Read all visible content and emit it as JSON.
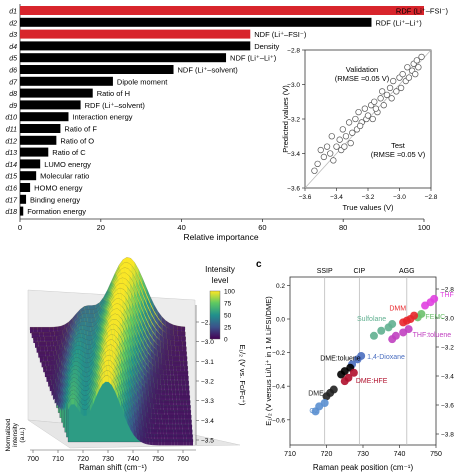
{
  "chart_data": [
    {
      "type": "bar",
      "orientation": "horizontal",
      "xlabel": "Relative importance",
      "xlim": [
        0,
        100
      ],
      "xticks": [
        0,
        20,
        40,
        60,
        80,
        100
      ],
      "colors": {
        "highlight": "#d8252c",
        "default": "#000000"
      },
      "bars": [
        {
          "id": "d1",
          "label": "RDF (Li⁺–FSI⁻)",
          "value": 100,
          "highlight": true
        },
        {
          "id": "d2",
          "label": "RDF (Li⁺–Li⁺)",
          "value": 87,
          "highlight": false
        },
        {
          "id": "d3",
          "label": "NDF (Li⁺–FSI⁻)",
          "value": 57,
          "highlight": true
        },
        {
          "id": "d4",
          "label": "Density",
          "value": 57,
          "highlight": false
        },
        {
          "id": "d5",
          "label": "NDF (Li⁺–Li⁺)",
          "value": 51,
          "highlight": false
        },
        {
          "id": "d6",
          "label": "NDF (Li⁺–solvent)",
          "value": 38,
          "highlight": false
        },
        {
          "id": "d7",
          "label": "Dipole moment",
          "value": 23,
          "highlight": false
        },
        {
          "id": "d8",
          "label": "Ratio of H",
          "value": 18,
          "highlight": false
        },
        {
          "id": "d9",
          "label": "RDF (Li⁺–solvent)",
          "value": 15,
          "highlight": false
        },
        {
          "id": "d10",
          "label": "Interaction energy",
          "value": 12,
          "highlight": false
        },
        {
          "id": "d11",
          "label": "Ratio of F",
          "value": 10,
          "highlight": false
        },
        {
          "id": "d12",
          "label": "Ratio of O",
          "value": 9,
          "highlight": false
        },
        {
          "id": "d13",
          "label": "Ratio of C",
          "value": 7,
          "highlight": false
        },
        {
          "id": "d14",
          "label": "LUMO energy",
          "value": 5,
          "highlight": false
        },
        {
          "id": "d15",
          "label": "Molecular ratio",
          "value": 4,
          "highlight": false
        },
        {
          "id": "d16",
          "label": "HOMO energy",
          "value": 2.5,
          "highlight": false
        },
        {
          "id": "d17",
          "label": "Binding energy",
          "value": 1.5,
          "highlight": false
        },
        {
          "id": "d18",
          "label": "Formation energy",
          "value": 0.8,
          "highlight": false
        }
      ]
    },
    {
      "type": "scatter",
      "xlabel": "True values (V)",
      "ylabel": "Predicted values (V)",
      "xlim": [
        -3.6,
        -2.8
      ],
      "ylim": [
        -3.6,
        -2.8
      ],
      "xticks": [
        -3.6,
        -3.4,
        -3.2,
        -3.0,
        -2.8
      ],
      "yticks": [
        -2.8,
        -3.0,
        -3.2,
        -3.4,
        -3.6
      ],
      "annotations": [
        {
          "text": "Validation",
          "sub": "(RMSE ≈0.05 V)"
        },
        {
          "text": "Test",
          "sub": "(RMSE ≈0.05 V)"
        }
      ],
      "points": [
        [
          -3.54,
          -3.5
        ],
        [
          -3.52,
          -3.46
        ],
        [
          -3.5,
          -3.38
        ],
        [
          -3.48,
          -3.42
        ],
        [
          -3.46,
          -3.36
        ],
        [
          -3.44,
          -3.4
        ],
        [
          -3.43,
          -3.3
        ],
        [
          -3.42,
          -3.44
        ],
        [
          -3.4,
          -3.36
        ],
        [
          -3.38,
          -3.32
        ],
        [
          -3.37,
          -3.38
        ],
        [
          -3.36,
          -3.26
        ],
        [
          -3.34,
          -3.3
        ],
        [
          -3.32,
          -3.22
        ],
        [
          -3.31,
          -3.34
        ],
        [
          -3.3,
          -3.28
        ],
        [
          -3.28,
          -3.2
        ],
        [
          -3.27,
          -3.26
        ],
        [
          -3.26,
          -3.16
        ],
        [
          -3.24,
          -3.22
        ],
        [
          -3.22,
          -3.14
        ],
        [
          -3.21,
          -3.2
        ],
        [
          -3.2,
          -3.18
        ],
        [
          -3.18,
          -3.12
        ],
        [
          -3.17,
          -3.2
        ],
        [
          -3.16,
          -3.1
        ],
        [
          -3.14,
          -3.16
        ],
        [
          -3.12,
          -3.08
        ],
        [
          -3.11,
          -3.04
        ],
        [
          -3.1,
          -3.12
        ],
        [
          -3.08,
          -3.06
        ],
        [
          -3.06,
          -3.02
        ],
        [
          -3.05,
          -3.08
        ],
        [
          -3.04,
          -2.98
        ],
        [
          -3.02,
          -3.04
        ],
        [
          -3.0,
          -2.96
        ],
        [
          -2.99,
          -3.02
        ],
        [
          -2.98,
          -2.94
        ],
        [
          -2.96,
          -2.98
        ],
        [
          -2.95,
          -2.9
        ],
        [
          -2.94,
          -2.96
        ],
        [
          -2.92,
          -2.92
        ],
        [
          -2.91,
          -2.88
        ],
        [
          -2.9,
          -2.94
        ],
        [
          -2.89,
          -2.86
        ],
        [
          -2.88,
          -2.9
        ],
        [
          -2.86,
          -2.84
        ],
        [
          -3.25,
          -3.24
        ],
        [
          -3.15,
          -3.14
        ],
        [
          -3.35,
          -3.36
        ]
      ]
    },
    {
      "type": "area",
      "subtype": "3d-ridge",
      "xlabel": "Raman shift (cm⁻¹)",
      "xticks": [
        700,
        710,
        720,
        730,
        740,
        750,
        760
      ],
      "zlabel_lines": [
        "Normalized",
        "intensity",
        "(a.u.)"
      ],
      "colorbar": {
        "title_lines": [
          "Intensity",
          "level"
        ],
        "ticks": [
          100,
          75,
          50,
          25,
          0
        ],
        "colors": [
          "#440154",
          "#3b528b",
          "#21918c",
          "#5ec962",
          "#fde725"
        ]
      },
      "right_axis": {
        "label": "E₁/₂ (V vs. Fc/Fc⁺)",
        "ticks": [
          -2.9,
          -3.0,
          -3.1,
          -3.2,
          -3.3,
          -3.4,
          -3.5
        ]
      }
    },
    {
      "type": "scatter",
      "panel_label": "c",
      "xlabel": "Raman peak position (cm⁻¹)",
      "ylabel": "E₁/₂ (V versus Li/Li⁺ in 1 M LiFSI/DME)",
      "xlim": [
        710,
        750
      ],
      "ylim": [
        -0.75,
        0.25
      ],
      "xticks": [
        710,
        720,
        730,
        740,
        750
      ],
      "yticks": [
        0.2,
        0.0,
        -0.2,
        -0.4,
        -0.6
      ],
      "right_axis": {
        "ticks": [
          -2.8,
          -3.0,
          -3.2,
          -3.4,
          -3.6,
          -3.8
        ]
      },
      "regions": [
        {
          "label": "SSIP",
          "x": 719.5
        },
        {
          "label": "CIP",
          "x": 729
        },
        {
          "label": "AGG",
          "x": 742
        }
      ],
      "series": [
        {
          "name": "THF",
          "color": "#e040e0",
          "points": [
            [
              747,
              0.08
            ],
            [
              748.5,
              0.1
            ],
            [
              749.5,
              0.12
            ]
          ]
        },
        {
          "name": "FEMC",
          "color": "#6cc06c",
          "points": [
            [
              745,
              0.01
            ],
            [
              746,
              0.03
            ]
          ]
        },
        {
          "name": "DMM",
          "color": "#e8262b",
          "points": [
            [
              741,
              -0.02
            ],
            [
              742,
              -0.01
            ],
            [
              743,
              0.0
            ],
            [
              744,
              0.02
            ]
          ]
        },
        {
          "name": "Sulfolane",
          "color": "#60b090",
          "points": [
            [
              733,
              -0.1
            ],
            [
              735,
              -0.07
            ],
            [
              737,
              -0.05
            ],
            [
              738,
              -0.03
            ]
          ]
        },
        {
          "name": "THF:toluene",
          "color": "#c040c0",
          "points": [
            [
              738,
              -0.12
            ],
            [
              739,
              -0.1
            ],
            [
              741,
              -0.08
            ],
            [
              742.5,
              -0.06
            ]
          ]
        },
        {
          "name": "1,4-Dioxane",
          "color": "#4a6ec0",
          "points": [
            [
              727,
              -0.27
            ],
            [
              728.5,
              -0.24
            ],
            [
              729.5,
              -0.22
            ]
          ]
        },
        {
          "name": "DME:toluene",
          "color": "#000000",
          "points": [
            [
              724,
              -0.33
            ],
            [
              725,
              -0.31
            ],
            [
              726.5,
              -0.29
            ]
          ]
        },
        {
          "name": "DME:HFE",
          "color": "#b0102c",
          "points": [
            [
              725,
              -0.37
            ],
            [
              726,
              -0.35
            ],
            [
              727.5,
              -0.32
            ]
          ]
        },
        {
          "name": "DME",
          "color": "#222222",
          "points": [
            [
              720,
              -0.46
            ],
            [
              721,
              -0.44
            ],
            [
              722,
              -0.42
            ]
          ]
        },
        {
          "name": "G2",
          "color": "#5a8fd0",
          "points": [
            [
              717,
              -0.55
            ],
            [
              718,
              -0.52
            ],
            [
              719.5,
              -0.5
            ]
          ]
        }
      ]
    }
  ]
}
